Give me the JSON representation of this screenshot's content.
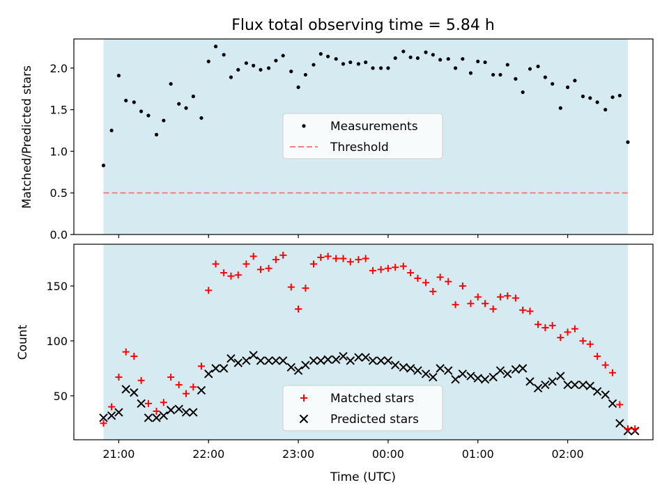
{
  "chart_data": [
    {
      "type": "scatter",
      "title": "Flux total observing time = 5.84 h",
      "xlabel": "",
      "ylabel": "Matched/Predicted stars",
      "xunit": "hours since 20:00 UTC",
      "xlim": [
        20.5,
        26.95
      ],
      "ylim": [
        0,
        2.35
      ],
      "yticks": [
        0.0,
        0.5,
        1.0,
        1.5,
        2.0
      ],
      "ytick_labels": [
        "0.0",
        "0.5",
        "1.0",
        "1.5",
        "2.0"
      ],
      "xticks": [
        21,
        22,
        23,
        24,
        25,
        26
      ],
      "shaded_span": [
        20.83,
        26.67
      ],
      "shade_color": "#d5ebf1",
      "legend": {
        "position": "center",
        "entries": [
          {
            "label": "Measurements",
            "marker": "dot",
            "color": "#000000"
          },
          {
            "label": "Threshold",
            "marker": "dashed-line",
            "color": "#f08080"
          }
        ]
      },
      "threshold": 0.5,
      "series": [
        {
          "name": "Measurements",
          "color": "#000000",
          "x": [
            20.83,
            20.92,
            21.0,
            21.08,
            21.17,
            21.25,
            21.33,
            21.42,
            21.5,
            21.58,
            21.67,
            21.75,
            21.83,
            21.92,
            22.0,
            22.08,
            22.17,
            22.25,
            22.33,
            22.42,
            22.5,
            22.58,
            22.67,
            22.75,
            22.83,
            22.92,
            23.0,
            23.08,
            23.17,
            23.25,
            23.33,
            23.42,
            23.5,
            23.58,
            23.67,
            23.75,
            23.83,
            23.92,
            24.0,
            24.08,
            24.17,
            24.25,
            24.33,
            24.42,
            24.5,
            24.58,
            24.67,
            24.75,
            24.83,
            24.92,
            25.0,
            25.08,
            25.17,
            25.25,
            25.33,
            25.42,
            25.5,
            25.58,
            25.67,
            25.75,
            25.83,
            25.92,
            26.0,
            26.08,
            26.17,
            26.25,
            26.33,
            26.42,
            26.5,
            26.58,
            26.67
          ],
          "y": [
            0.83,
            1.25,
            1.91,
            1.61,
            1.59,
            1.48,
            1.43,
            1.2,
            1.37,
            1.81,
            1.57,
            1.52,
            1.66,
            1.4,
            2.08,
            2.26,
            2.16,
            1.89,
            1.98,
            2.06,
            2.03,
            1.98,
            2.0,
            2.09,
            2.15,
            1.96,
            1.77,
            1.92,
            2.04,
            2.17,
            2.14,
            2.11,
            2.05,
            2.07,
            2.05,
            2.07,
            2.0,
            2.0,
            2.0,
            2.12,
            2.2,
            2.13,
            2.12,
            2.19,
            2.16,
            2.1,
            2.11,
            2.0,
            2.11,
            1.94,
            2.08,
            2.07,
            1.92,
            1.92,
            2.04,
            1.87,
            1.71,
            1.99,
            2.02,
            1.89,
            1.81,
            1.52,
            1.77,
            1.85,
            1.66,
            1.64,
            1.59,
            1.5,
            1.65,
            1.67,
            1.11
          ]
        }
      ]
    },
    {
      "type": "scatter",
      "title": "",
      "xlabel": "Time (UTC)",
      "ylabel": "Count",
      "xunit": "hours since 20:00 UTC",
      "xlim": [
        20.5,
        26.95
      ],
      "ylim": [
        10,
        188
      ],
      "yticks": [
        50,
        100,
        150
      ],
      "ytick_labels": [
        "50",
        "100",
        "150"
      ],
      "xticks": [
        21,
        22,
        23,
        24,
        25,
        26
      ],
      "xtick_labels": [
        "21:00",
        "22:00",
        "23:00",
        "00:00",
        "01:00",
        "02:00"
      ],
      "shaded_span": [
        20.83,
        26.67
      ],
      "shade_color": "#d5ebf1",
      "legend": {
        "position": "lower center",
        "entries": [
          {
            "label": "Matched stars",
            "marker": "plus",
            "color": "#ff0000"
          },
          {
            "label": "Predicted stars",
            "marker": "x",
            "color": "#000000"
          }
        ]
      },
      "series": [
        {
          "name": "Matched stars",
          "color": "#ff0000",
          "marker": "plus",
          "x": [
            20.83,
            20.92,
            21.0,
            21.08,
            21.17,
            21.25,
            21.33,
            21.42,
            21.5,
            21.58,
            21.67,
            21.75,
            21.83,
            21.92,
            22.0,
            22.08,
            22.17,
            22.25,
            22.33,
            22.42,
            22.5,
            22.58,
            22.67,
            22.75,
            22.83,
            22.92,
            23.0,
            23.08,
            23.17,
            23.25,
            23.33,
            23.42,
            23.5,
            23.58,
            23.67,
            23.75,
            23.83,
            23.92,
            24.0,
            24.08,
            24.17,
            24.25,
            24.33,
            24.42,
            24.5,
            24.58,
            24.67,
            24.75,
            24.83,
            24.92,
            25.0,
            25.08,
            25.17,
            25.25,
            25.33,
            25.42,
            25.5,
            25.58,
            25.67,
            25.75,
            25.83,
            25.92,
            26.0,
            26.08,
            26.17,
            26.25,
            26.33,
            26.42,
            26.5,
            26.58,
            26.67,
            26.75
          ],
          "y": [
            25,
            40,
            67,
            90,
            86,
            64,
            43,
            36,
            44,
            67,
            60,
            52,
            58,
            77,
            146,
            170,
            162,
            159,
            160,
            170,
            177,
            165,
            166,
            174,
            178,
            149,
            129,
            148,
            170,
            176,
            177,
            175,
            175,
            172,
            174,
            175,
            164,
            165,
            166,
            167,
            168,
            162,
            157,
            153,
            145,
            158,
            154,
            133,
            150,
            134,
            140,
            134,
            129,
            140,
            141,
            139,
            128,
            127,
            115,
            112,
            114,
            103,
            108,
            111,
            100,
            97,
            86,
            78,
            71,
            42,
            20,
            20
          ],
          "note": ""
        },
        {
          "name": "Predicted stars",
          "color": "#000000",
          "marker": "x",
          "x": [
            20.83,
            20.92,
            21.0,
            21.08,
            21.17,
            21.25,
            21.33,
            21.42,
            21.5,
            21.58,
            21.67,
            21.75,
            21.83,
            21.92,
            22.0,
            22.08,
            22.17,
            22.25,
            22.33,
            22.42,
            22.5,
            22.58,
            22.67,
            22.75,
            22.83,
            22.92,
            23.0,
            23.08,
            23.17,
            23.25,
            23.33,
            23.42,
            23.5,
            23.58,
            23.67,
            23.75,
            23.83,
            23.92,
            24.0,
            24.08,
            24.17,
            24.25,
            24.33,
            24.42,
            24.5,
            24.58,
            24.67,
            24.75,
            24.83,
            24.92,
            25.0,
            25.08,
            25.17,
            25.25,
            25.33,
            25.42,
            25.5,
            25.58,
            25.67,
            25.75,
            25.83,
            25.92,
            26.0,
            26.08,
            26.17,
            26.25,
            26.33,
            26.42,
            26.5,
            26.58,
            26.67,
            26.75
          ],
          "y": [
            30,
            32,
            35,
            56,
            53,
            43,
            30,
            30,
            32,
            37,
            38,
            35,
            35,
            55,
            70,
            75,
            75,
            84,
            80,
            82,
            87,
            82,
            82,
            82,
            82,
            76,
            73,
            78,
            82,
            82,
            83,
            83,
            86,
            82,
            85,
            85,
            82,
            82,
            82,
            78,
            76,
            75,
            73,
            70,
            67,
            75,
            73,
            65,
            70,
            68,
            66,
            65,
            67,
            73,
            70,
            74,
            75,
            63,
            57,
            60,
            63,
            68,
            60,
            60,
            60,
            59,
            54,
            51,
            43,
            25,
            18,
            18
          ]
        }
      ]
    }
  ]
}
